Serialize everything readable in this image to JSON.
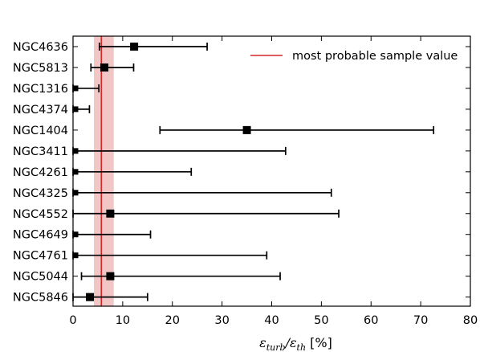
{
  "chart_data": {
    "type": "scatter",
    "categories": [
      "NGC4636",
      "NGC5813",
      "NGC1316",
      "NGC4374",
      "NGC1404",
      "NGC3411",
      "NGC4261",
      "NGC4325",
      "NGC4552",
      "NGC4649",
      "NGC4761",
      "NGC5044",
      "NGC5846"
    ],
    "values": [
      12.3,
      6.3,
      0.5,
      0.5,
      35.0,
      0.5,
      0.5,
      0.5,
      7.5,
      0.5,
      0.5,
      7.5,
      3.4
    ],
    "err_low": [
      5.3,
      3.6,
      0.0,
      0.0,
      17.5,
      0.0,
      0.0,
      0.0,
      0.0,
      0.0,
      0.0,
      1.7,
      0.0
    ],
    "err_high": [
      27.0,
      12.2,
      5.2,
      3.3,
      72.6,
      42.8,
      23.8,
      52.0,
      53.5,
      15.6,
      39.0,
      41.7,
      15.0
    ],
    "reference": {
      "label": "most probable sample value",
      "value": 5.7,
      "band": [
        4.2,
        8.2
      ],
      "color": "#d62728",
      "band_color": "#efb3b3"
    },
    "xlabel": "ε_turb/ε_th [%]",
    "xlabel_main": "ε",
    "xlabel_main_sub": "turb",
    "xlabel_sep": "/ε",
    "xlabel_sep_sub": "th",
    "xlabel_unit": " [%]",
    "xlim": [
      0,
      80
    ],
    "xticks": [
      "0",
      "10",
      "20",
      "30",
      "40",
      "50",
      "60",
      "70",
      "80"
    ],
    "grid": false,
    "legend": "top-right",
    "marker_color": "#000000"
  }
}
